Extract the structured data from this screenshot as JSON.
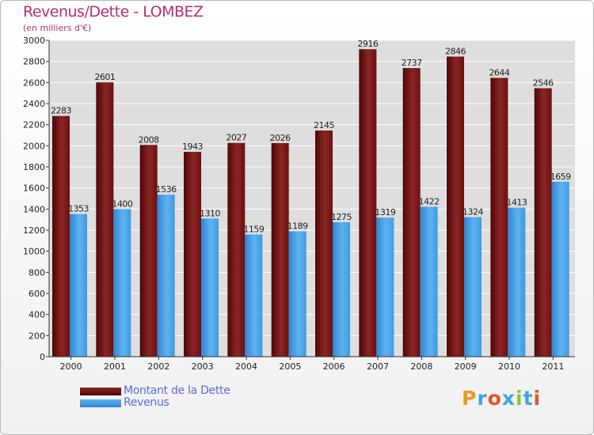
{
  "header": {
    "title": "Revenus/Dette - LOMBEZ",
    "subtitle": "(en milliers d'€)"
  },
  "legend": {
    "items": [
      {
        "label": "Montant de la Dette",
        "color": "#6e1212"
      },
      {
        "label": "Revenus",
        "color": "#3f9ae0"
      }
    ]
  },
  "logo": {
    "text": "Proxiti",
    "colors": [
      "#e89a1f",
      "#3fa3e0",
      "#e2562a",
      "#3fa3e0",
      "#8bc43b",
      "#3fa3e0",
      "#e2562a"
    ]
  },
  "chart_data": {
    "type": "bar",
    "title": "Revenus/Dette - LOMBEZ",
    "subtitle": "(en milliers d'€)",
    "xlabel": "",
    "ylabel": "",
    "ylim": [
      0,
      3000
    ],
    "yticks": [
      0,
      200,
      400,
      600,
      800,
      1000,
      1200,
      1400,
      1600,
      1800,
      2000,
      2200,
      2400,
      2600,
      2800,
      3000
    ],
    "grid": true,
    "categories": [
      "2000",
      "2001",
      "2002",
      "2003",
      "2004",
      "2005",
      "2006",
      "2007",
      "2008",
      "2009",
      "2010",
      "2011"
    ],
    "series": [
      {
        "name": "Montant de la Dette",
        "color": "#6e1212",
        "values": [
          2283,
          2601,
          2008,
          1943,
          2027,
          2026,
          2145,
          2916,
          2737,
          2846,
          2644,
          2546
        ]
      },
      {
        "name": "Revenus",
        "color": "#3f9ae0",
        "values": [
          1353,
          1400,
          1536,
          1310,
          1159,
          1189,
          1275,
          1319,
          1422,
          1324,
          1413,
          1659
        ]
      }
    ]
  }
}
